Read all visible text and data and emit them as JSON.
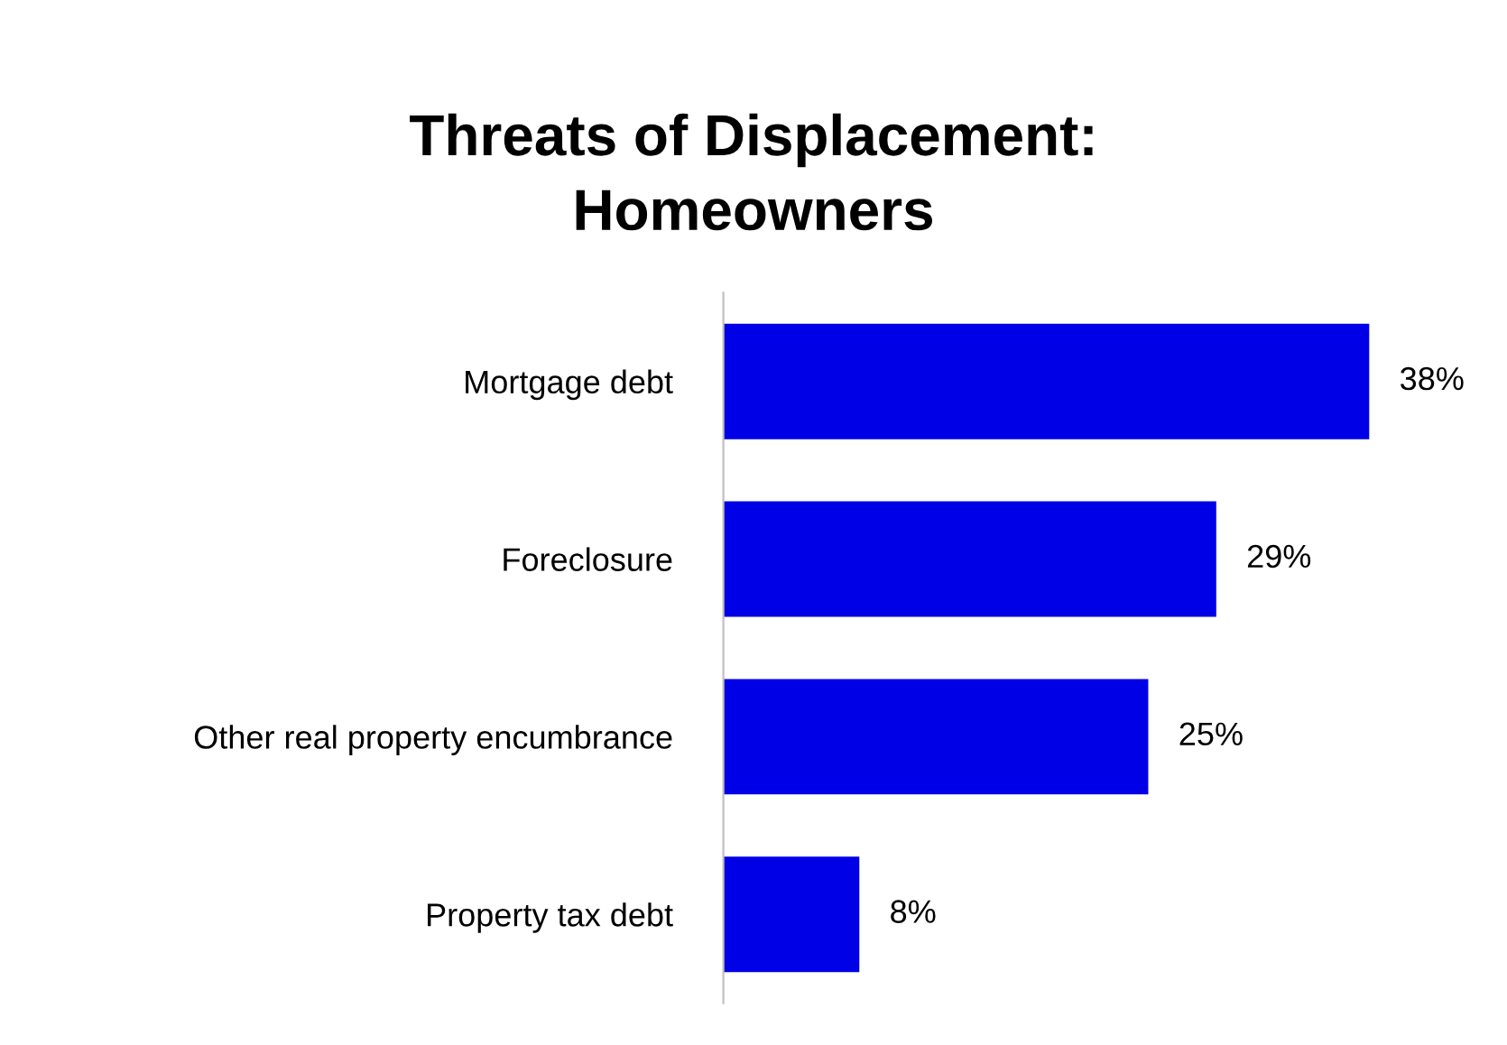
{
  "chart_data": {
    "type": "bar",
    "orientation": "horizontal",
    "title": "Threats of Displacement:\nHomeowners",
    "categories": [
      "Mortgage debt",
      "Foreclosure",
      "Other real property encumbrance",
      "Property tax debt"
    ],
    "values": [
      38,
      29,
      25,
      8
    ],
    "value_labels": [
      "38%",
      "29%",
      "25%",
      "8%"
    ],
    "color": "#0000e6",
    "grid": false,
    "legend": false
  }
}
